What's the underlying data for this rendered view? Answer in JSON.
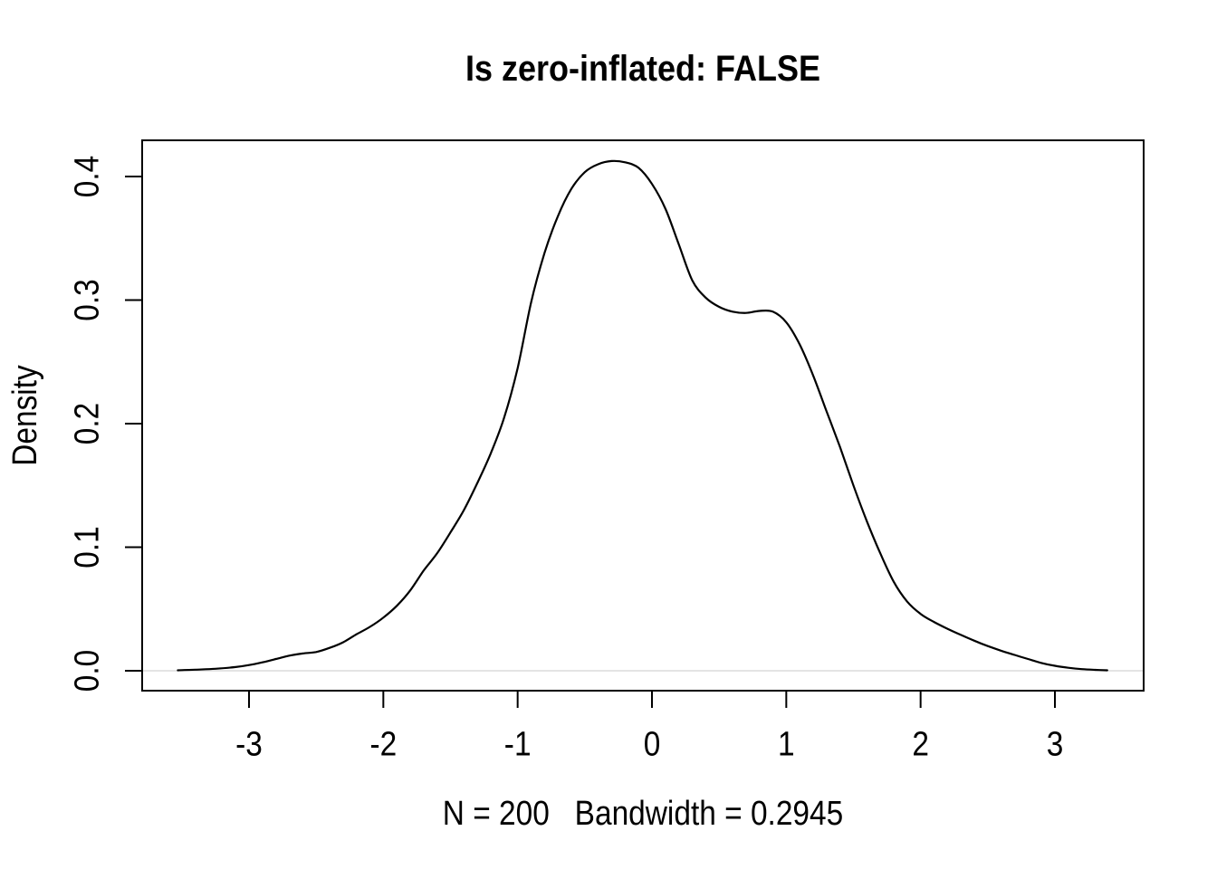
{
  "page": {
    "background": "#ffffff"
  },
  "chart_data": {
    "type": "line",
    "chart_kind": "kernel-density-curve",
    "title": "Is zero-inflated: FALSE",
    "xlabel": "N = 200   Bandwidth = 0.2945",
    "ylabel": "Density",
    "stats": {
      "n": 200,
      "bandwidth": 0.2945
    },
    "x_ticks": {
      "values": [
        -3,
        -2,
        -1,
        0,
        1,
        2,
        3
      ],
      "labels": [
        "-3",
        "-2",
        "-1",
        "0",
        "1",
        "2",
        "3"
      ]
    },
    "y_ticks": {
      "values": [
        0.0,
        0.1,
        0.2,
        0.3,
        0.4
      ],
      "labels": [
        "0.0",
        "0.1",
        "0.2",
        "0.3",
        "0.4"
      ]
    },
    "xlim": [
      -3.8,
      3.66
    ],
    "ylim": [
      -0.016,
      0.429
    ],
    "grid": false,
    "legend_position": null,
    "zero_line_y": 0,
    "styles": {
      "curve_color": "#000000",
      "axis_color": "#000000",
      "zero_line_color": "#dbdbdb",
      "background": "#ffffff"
    },
    "series": [
      {
        "name": "density",
        "points": [
          [
            -3.53,
            0.0004
          ],
          [
            -3.4,
            0.0009
          ],
          [
            -3.25,
            0.0016
          ],
          [
            -3.1,
            0.003
          ],
          [
            -3.0,
            0.0046
          ],
          [
            -2.9,
            0.0068
          ],
          [
            -2.8,
            0.0095
          ],
          [
            -2.7,
            0.0122
          ],
          [
            -2.6,
            0.014
          ],
          [
            -2.5,
            0.0152
          ],
          [
            -2.4,
            0.0185
          ],
          [
            -2.3,
            0.023
          ],
          [
            -2.2,
            0.0295
          ],
          [
            -2.1,
            0.0355
          ],
          [
            -2.0,
            0.043
          ],
          [
            -1.9,
            0.0525
          ],
          [
            -1.8,
            0.065
          ],
          [
            -1.7,
            0.081
          ],
          [
            -1.6,
            0.095
          ],
          [
            -1.5,
            0.112
          ],
          [
            -1.4,
            0.13
          ],
          [
            -1.3,
            0.152
          ],
          [
            -1.2,
            0.176
          ],
          [
            -1.1,
            0.205
          ],
          [
            -1.0,
            0.245
          ],
          [
            -0.9,
            0.298
          ],
          [
            -0.8,
            0.338
          ],
          [
            -0.7,
            0.368
          ],
          [
            -0.6,
            0.39
          ],
          [
            -0.5,
            0.4035
          ],
          [
            -0.4,
            0.41
          ],
          [
            -0.3,
            0.4125
          ],
          [
            -0.2,
            0.4115
          ],
          [
            -0.1,
            0.407
          ],
          [
            0.0,
            0.394
          ],
          [
            0.1,
            0.374
          ],
          [
            0.2,
            0.345
          ],
          [
            0.3,
            0.316
          ],
          [
            0.4,
            0.302
          ],
          [
            0.5,
            0.2945
          ],
          [
            0.6,
            0.2906
          ],
          [
            0.7,
            0.2896
          ],
          [
            0.8,
            0.2912
          ],
          [
            0.9,
            0.2906
          ],
          [
            1.0,
            0.282
          ],
          [
            1.1,
            0.264
          ],
          [
            1.2,
            0.239
          ],
          [
            1.3,
            0.21
          ],
          [
            1.4,
            0.181
          ],
          [
            1.5,
            0.15
          ],
          [
            1.6,
            0.121
          ],
          [
            1.7,
            0.095
          ],
          [
            1.8,
            0.072
          ],
          [
            1.9,
            0.056
          ],
          [
            2.0,
            0.046
          ],
          [
            2.1,
            0.0395
          ],
          [
            2.2,
            0.034
          ],
          [
            2.3,
            0.029
          ],
          [
            2.4,
            0.0243
          ],
          [
            2.5,
            0.02
          ],
          [
            2.6,
            0.0162
          ],
          [
            2.7,
            0.0128
          ],
          [
            2.8,
            0.0095
          ],
          [
            2.9,
            0.0063
          ],
          [
            3.0,
            0.004
          ],
          [
            3.1,
            0.0024
          ],
          [
            3.2,
            0.0013
          ],
          [
            3.3,
            0.0007
          ],
          [
            3.39,
            0.0004
          ]
        ]
      }
    ]
  }
}
